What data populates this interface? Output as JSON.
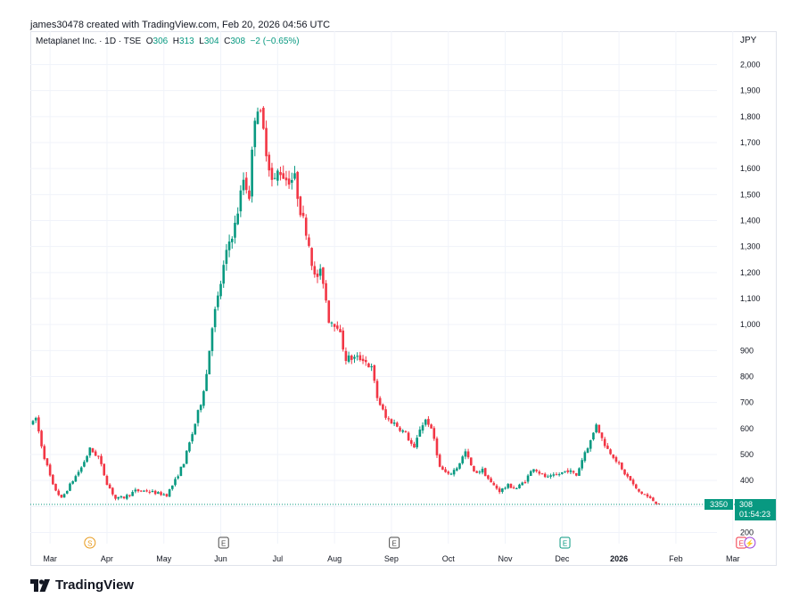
{
  "credit": "james30478 created with TradingView.com, Feb 20, 2026 04:56 UTC",
  "legend": {
    "symbol": "Metaplanet Inc. · 1D · TSE",
    "o_label": "O",
    "o": "306",
    "h_label": "H",
    "h": "313",
    "l_label": "L",
    "l": "304",
    "c_label": "C",
    "c": "308",
    "change": "−2 (−0.65%)"
  },
  "currency": "JPY",
  "price_tag": {
    "volume": "3350",
    "price": "308",
    "countdown": "01:54:23"
  },
  "colors": {
    "up": "#089981",
    "down": "#F23645",
    "grid": "#f0f3fa",
    "text": "#131722"
  },
  "event_markers": [
    {
      "letter": "S",
      "month_index": 1.0,
      "color": "#e89a1c"
    },
    {
      "letter": "E",
      "month_index": 3.35,
      "color": "#4a4a4a"
    },
    {
      "letter": "E",
      "month_index": 6.35,
      "color": "#4a4a4a"
    },
    {
      "letter": "E",
      "month_index": 9.35,
      "color": "#089981"
    },
    {
      "letter": "E",
      "month_index": 12.45,
      "color": "#F23645"
    },
    {
      "letter": "⚡",
      "month_index": 12.6,
      "color": "#9b3dd9"
    }
  ],
  "logo_text": "TradingView",
  "chart_data": {
    "type": "candlestick",
    "title": "Metaplanet Inc. · 1D · TSE",
    "ylabel": "JPY",
    "ylim": [
      200,
      2000
    ],
    "y_ticks": [
      200,
      300,
      400,
      500,
      600,
      700,
      800,
      900,
      1000,
      1100,
      1200,
      1300,
      1400,
      1500,
      1600,
      1700,
      1800,
      1900,
      2000
    ],
    "y_tick_labels": [
      "200",
      "",
      "400",
      "500",
      "600",
      "700",
      "800",
      "900",
      "1,000",
      "1,100",
      "1,200",
      "1,300",
      "1,400",
      "1,500",
      "1,600",
      "1,700",
      "1,800",
      "1,900",
      "2,000"
    ],
    "x_labels": [
      "Mar",
      "Apr",
      "May",
      "Jun",
      "Jul",
      "Aug",
      "Sep",
      "Oct",
      "Nov",
      "Dec",
      "2026",
      "Feb",
      "Mar"
    ],
    "grid": true,
    "last_price": 308,
    "anchors": [
      [
        0.0,
        620
      ],
      [
        0.05,
        640
      ],
      [
        0.18,
        505
      ],
      [
        0.35,
        380
      ],
      [
        0.5,
        330
      ],
      [
        0.7,
        400
      ],
      [
        0.85,
        450
      ],
      [
        1.0,
        520
      ],
      [
        1.15,
        490
      ],
      [
        1.3,
        390
      ],
      [
        1.45,
        330
      ],
      [
        1.6,
        335
      ],
      [
        1.8,
        360
      ],
      [
        2.0,
        360
      ],
      [
        2.2,
        350
      ],
      [
        2.35,
        345
      ],
      [
        2.5,
        400
      ],
      [
        2.65,
        470
      ],
      [
        2.8,
        580
      ],
      [
        2.95,
        700
      ],
      [
        3.05,
        810
      ],
      [
        3.15,
        1000
      ],
      [
        3.25,
        1100
      ],
      [
        3.35,
        1220
      ],
      [
        3.45,
        1320
      ],
      [
        3.55,
        1380
      ],
      [
        3.7,
        1560
      ],
      [
        3.8,
        1500
      ],
      [
        3.92,
        1870
      ],
      [
        4.02,
        1780
      ],
      [
        4.12,
        1650
      ],
      [
        4.22,
        1530
      ],
      [
        4.32,
        1600
      ],
      [
        4.45,
        1560
      ],
      [
        4.6,
        1560
      ],
      [
        4.72,
        1420
      ],
      [
        4.82,
        1350
      ],
      [
        4.95,
        1180
      ],
      [
        5.08,
        1200
      ],
      [
        5.2,
        1020
      ],
      [
        5.35,
        1000
      ],
      [
        5.5,
        870
      ],
      [
        5.65,
        870
      ],
      [
        5.8,
        870
      ],
      [
        5.95,
        830
      ],
      [
        6.05,
        720
      ],
      [
        6.2,
        640
      ],
      [
        6.35,
        620
      ],
      [
        6.55,
        580
      ],
      [
        6.7,
        520
      ],
      [
        6.8,
        600
      ],
      [
        6.92,
        640
      ],
      [
        7.05,
        560
      ],
      [
        7.15,
        450
      ],
      [
        7.3,
        420
      ],
      [
        7.45,
        450
      ],
      [
        7.6,
        510
      ],
      [
        7.75,
        430
      ],
      [
        7.9,
        440
      ],
      [
        8.05,
        390
      ],
      [
        8.2,
        360
      ],
      [
        8.35,
        380
      ],
      [
        8.5,
        370
      ],
      [
        8.65,
        400
      ],
      [
        8.8,
        450
      ],
      [
        8.95,
        420
      ],
      [
        9.05,
        410
      ],
      [
        9.2,
        420
      ],
      [
        9.4,
        440
      ],
      [
        9.55,
        420
      ],
      [
        9.7,
        510
      ],
      [
        9.82,
        560
      ],
      [
        9.9,
        620
      ],
      [
        10.0,
        560
      ],
      [
        10.1,
        520
      ],
      [
        10.22,
        490
      ],
      [
        10.35,
        440
      ],
      [
        10.5,
        400
      ],
      [
        10.62,
        360
      ],
      [
        10.75,
        345
      ],
      [
        10.88,
        325
      ],
      [
        11.0,
        308
      ]
    ]
  }
}
